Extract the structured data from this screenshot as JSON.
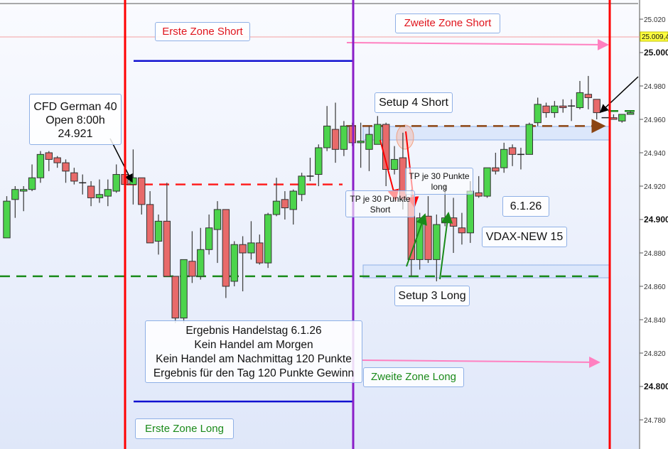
{
  "chart_data": {
    "type": "candlestick",
    "instrument": "CFD German 40",
    "ylim": [
      24770,
      25025
    ],
    "grid": false,
    "y_ticks": [
      "25.020",
      "25.000",
      "24.980",
      "24.960",
      "24.940",
      "24.920",
      "24.900",
      "24.880",
      "24.860",
      "24.840",
      "24.820",
      "24.800",
      "24.780"
    ],
    "y_tick_values": [
      25020,
      25000,
      24980,
      24960,
      24940,
      24920,
      24900,
      24880,
      24860,
      24840,
      24820,
      24800,
      24780
    ],
    "major_ticks": [
      25000,
      24900,
      24800
    ],
    "current_price_label": "25.009,4",
    "current_price": 25009.4,
    "candles_ohlc": [
      [
        24889,
        24914,
        24889,
        24911
      ],
      [
        24912,
        24920,
        24901,
        24918
      ],
      [
        24917,
        24920,
        24905,
        24918
      ],
      [
        24918,
        24933,
        24917,
        24925
      ],
      [
        24925,
        24941,
        24922,
        24939
      ],
      [
        24940,
        24941,
        24929,
        24936
      ],
      [
        24937,
        24938,
        24931,
        24934
      ],
      [
        24934,
        24936,
        24922,
        24929
      ],
      [
        24928,
        24931,
        24921,
        24923
      ],
      [
        24922,
        24927,
        24915,
        24922
      ],
      [
        24920,
        24923,
        24908,
        24913
      ],
      [
        24913,
        24924,
        24910,
        24915
      ],
      [
        24914,
        24924,
        24908,
        24918
      ],
      [
        24917,
        24933,
        24916,
        24927
      ],
      [
        24927,
        24927,
        24920,
        24921
      ],
      [
        24921,
        24942,
        24909,
        24925
      ],
      [
        24925,
        24925,
        24903,
        24909
      ],
      [
        24909,
        24917,
        24886,
        24886
      ],
      [
        24887,
        24903,
        24879,
        24899
      ],
      [
        24899,
        24922,
        24866,
        24866
      ],
      [
        24866,
        24866,
        24838,
        24841
      ],
      [
        24841,
        24876,
        24838,
        24876
      ],
      [
        24875,
        24893,
        24862,
        24866
      ],
      [
        24866,
        24895,
        24864,
        24882
      ],
      [
        24882,
        24903,
        24879,
        24895
      ],
      [
        24894,
        24911,
        24874,
        24906
      ],
      [
        24906,
        24906,
        24853,
        24860
      ],
      [
        24863,
        24887,
        24860,
        24885
      ],
      [
        24885,
        24890,
        24857,
        24880
      ],
      [
        24880,
        24899,
        24876,
        24886
      ],
      [
        24886,
        24891,
        24873,
        24874
      ],
      [
        24874,
        24904,
        24871,
        24903
      ],
      [
        24903,
        24925,
        24902,
        24911
      ],
      [
        24912,
        24917,
        24900,
        24907
      ],
      [
        24906,
        24918,
        24897,
        24917
      ],
      [
        24915,
        24928,
        24911,
        24926
      ],
      [
        24926,
        24937,
        24923,
        24926
      ],
      [
        24927,
        24945,
        24920,
        24943
      ],
      [
        24943,
        24968,
        24941,
        24956
      ],
      [
        24954,
        24970,
        24934,
        24942
      ],
      [
        24942,
        24959,
        24938,
        24956
      ],
      [
        24956,
        24958,
        24944,
        24946
      ],
      [
        24946,
        24958,
        24931,
        24947
      ],
      [
        24942,
        24956,
        24929,
        24951
      ],
      [
        24945,
        24962,
        24945,
        24957
      ],
      [
        24957,
        24958,
        24920,
        24930
      ],
      [
        24930,
        24944,
        24927,
        24936
      ],
      [
        24937,
        24952,
        24906,
        24912
      ],
      [
        24912,
        24918,
        24866,
        24876
      ],
      [
        24876,
        24904,
        24870,
        24901
      ],
      [
        24902,
        24914,
        24874,
        24876
      ],
      [
        24876,
        24903,
        24863,
        24897
      ],
      [
        24898,
        24921,
        24896,
        24901
      ],
      [
        24901,
        24913,
        24880,
        24896
      ],
      [
        24895,
        24904,
        24885,
        24892
      ],
      [
        24892,
        24923,
        24886,
        24917
      ],
      [
        24916,
        24926,
        24913,
        24914
      ],
      [
        24914,
        24931,
        24913,
        24931
      ],
      [
        24931,
        24940,
        24927,
        24929
      ],
      [
        24931,
        24946,
        24928,
        24942
      ],
      [
        24943,
        24945,
        24932,
        24939
      ],
      [
        24939,
        24943,
        24930,
        24939
      ],
      [
        24939,
        24958,
        24939,
        24957
      ],
      [
        24958,
        24973,
        24956,
        24969
      ],
      [
        24968,
        24970,
        24961,
        24964
      ],
      [
        24964,
        24971,
        24961,
        24968
      ],
      [
        24968,
        24972,
        24964,
        24967
      ],
      [
        24968,
        24972,
        24959,
        24968
      ],
      [
        24967,
        24983,
        24966,
        24976
      ],
      [
        24975,
        24986,
        24966,
        24973
      ],
      [
        24972,
        24972,
        24960,
        24964
      ],
      [
        24961,
        24961,
        24961,
        24961
      ],
      [
        24961,
        24963,
        24960,
        24960
      ],
      [
        24959,
        24963,
        24958,
        24963
      ],
      [
        24963,
        24965,
        24963,
        24964
      ]
    ],
    "levels": {
      "open_level": 24921,
      "support_level": 24866,
      "resistance_level": 24956,
      "zone_short_line": 24995,
      "zone_long_line": 24791
    },
    "colors": {
      "up": "#4cd44c",
      "down": "#e86a6a",
      "session_line": "#ff0000",
      "midday_line": "#8a1ec8",
      "open_level": "#ff2020",
      "support_level": "#1a8a1a",
      "resistance_level": "#8b4513",
      "zone_lines": "#1010d0",
      "target_arrows": "#ff80c0",
      "zone_box": "#dce7fb"
    }
  },
  "annotations": {
    "erste_zone_short": "Erste Zone Short",
    "zweite_zone_short": "Zweite Zone Short",
    "cfd_line1": "CFD German 40",
    "cfd_line2": "Open 8:00h",
    "cfd_line3": "24.921",
    "setup4": "Setup 4 Short",
    "tp_long_line1": "TP je 30 Punkte",
    "tp_long_line2": "long",
    "tp_short_line1": "TP je 30 Punkte",
    "tp_short_line2": "Short",
    "date": "6.1.26",
    "vdax": "VDAX-NEW 15",
    "setup3": "Setup 3 Long",
    "result_line1": "Ergebnis Handelstag 6.1.26",
    "result_line2": "Kein Handel am Morgen",
    "result_line3": "Kein Handel am Nachmittag  120 Punkte",
    "result_line4": "Ergebnis für den Tag 120 Punkte Gewinn",
    "zweite_zone_long": "Zweite Zone Long",
    "erste_zone_long": "Erste Zone Long"
  }
}
